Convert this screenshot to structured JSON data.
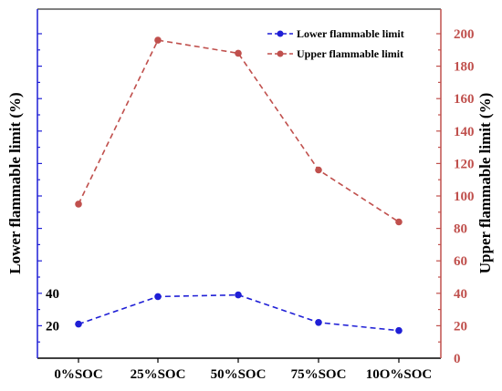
{
  "chart_data": {
    "type": "line",
    "categories": [
      "0%SOC",
      "25%SOC",
      "50%SOC",
      "75%SOC",
      "10O%SOC"
    ],
    "series": [
      {
        "name": "Lower flammable limit",
        "axis": "left",
        "color": "#1f1fd6",
        "line_style": "dashed",
        "marker": "circle",
        "values": [
          21,
          38,
          39,
          22,
          17
        ]
      },
      {
        "name": "Upper flammable limit",
        "axis": "right",
        "color": "#c0504d",
        "line_style": "dashed",
        "marker": "circle",
        "values": [
          95,
          196,
          188,
          116,
          84
        ]
      }
    ],
    "ylabel_left": "Lower flammable limit (%)",
    "ylabel_right": "Upper flammable limit (%)",
    "y_left_color": "#1f1fd6",
    "y_right_color": "#c0504d",
    "ylim_left": [
      0,
      200
    ],
    "ylim_right": [
      0,
      200
    ],
    "y_left_ticks": [
      20,
      40
    ],
    "y_right_ticks": [
      0,
      20,
      40,
      60,
      80,
      100,
      120,
      140,
      160,
      180,
      200
    ],
    "grid": false,
    "legend_position": "top-right"
  }
}
